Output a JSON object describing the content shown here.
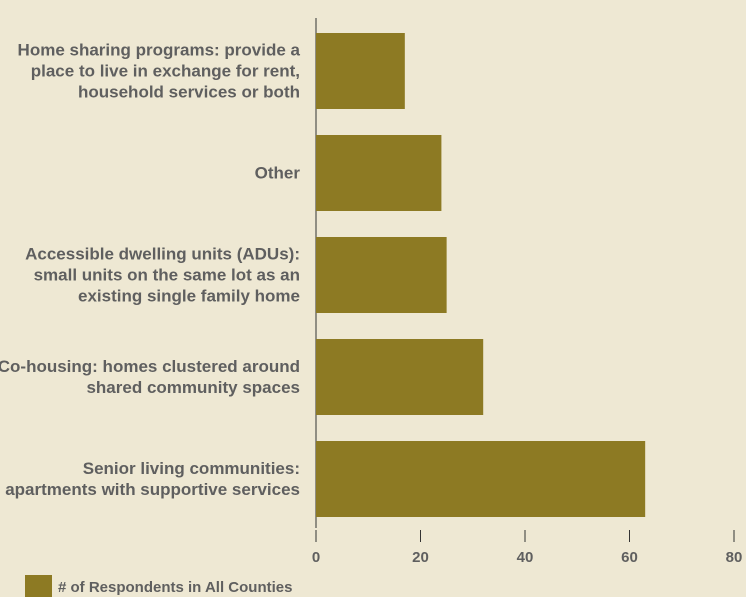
{
  "chart_data": {
    "type": "bar",
    "orientation": "horizontal",
    "categories": [
      "Home sharing programs: provide a place to live in exchange for rent, household services or both",
      "Other",
      "Accessible dwelling units (ADUs): small units on the same lot as an existing single family home",
      "Co-housing: homes clustered around shared community spaces",
      "Senior living communities: apartments with supportive services"
    ],
    "series": [
      {
        "name": "# of Respondents in All Counties",
        "color": "#8d7a23",
        "values": [
          17,
          24,
          25,
          32,
          63
        ]
      }
    ],
    "xlim": [
      0,
      80
    ],
    "xticks": [
      0,
      20,
      40,
      60,
      80
    ],
    "grid": false,
    "legend": "bottom-left"
  }
}
